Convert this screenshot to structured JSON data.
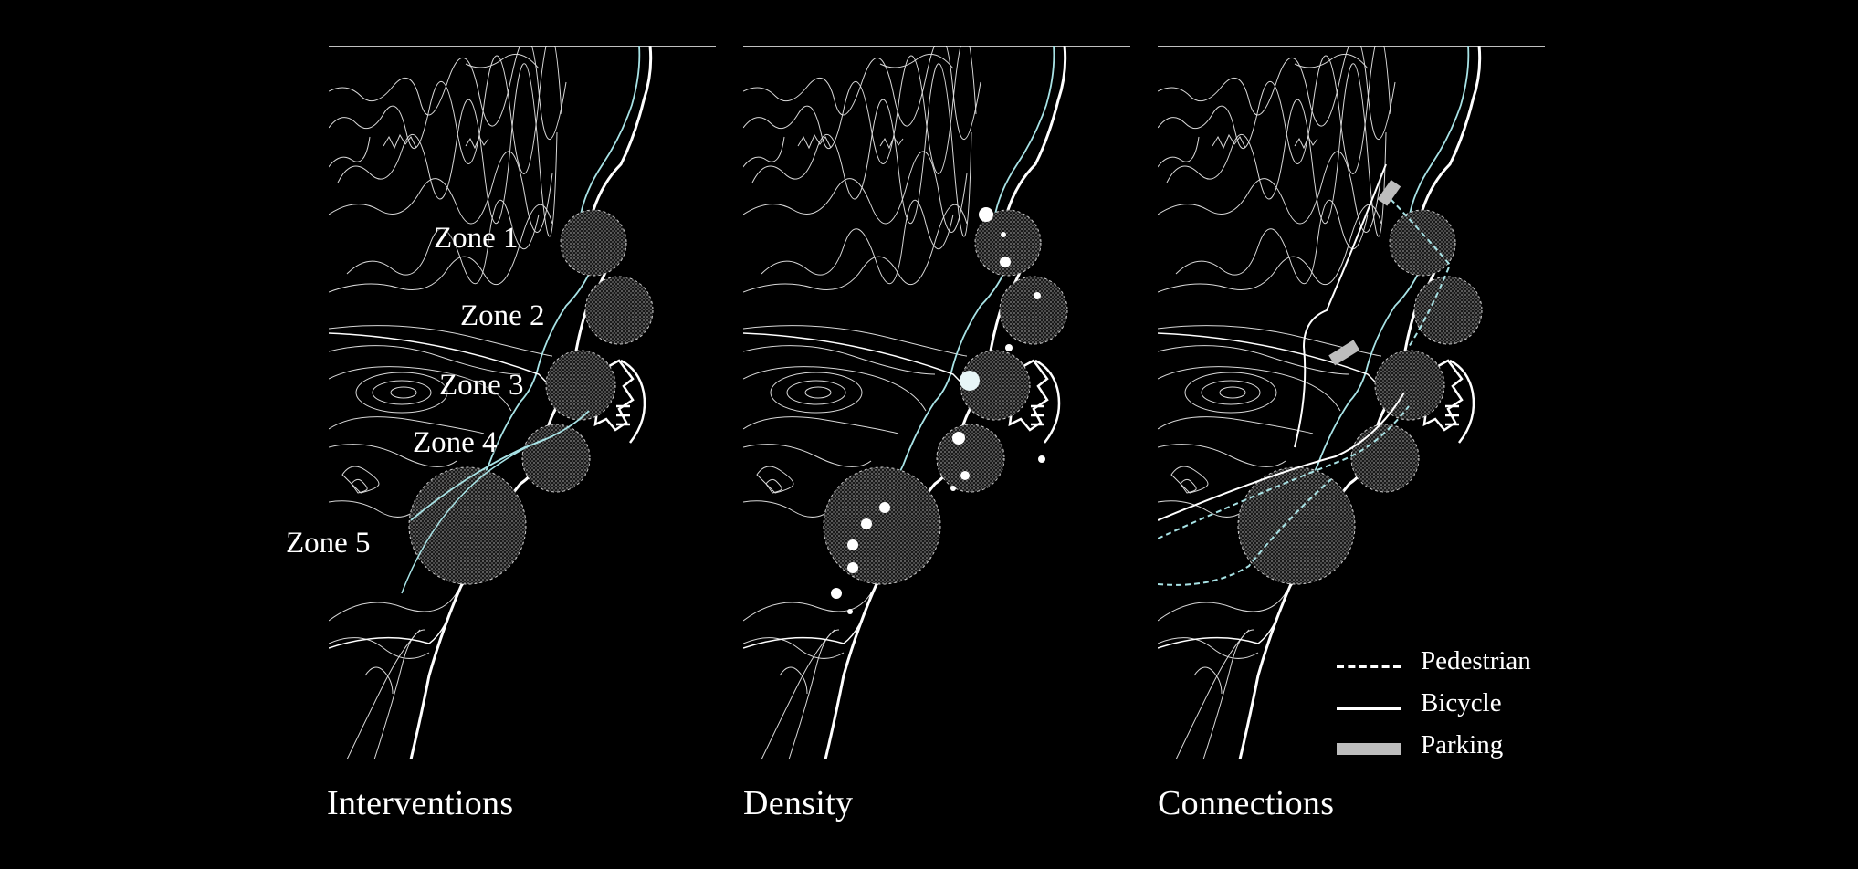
{
  "panels": [
    {
      "id": "interventions",
      "title": "Interventions"
    },
    {
      "id": "density",
      "title": "Density"
    },
    {
      "id": "connections",
      "title": "Connections"
    }
  ],
  "zones": [
    "Zone 1",
    "Zone 2",
    "Zone 3",
    "Zone 4",
    "Zone 5"
  ],
  "legend": {
    "pedestrian": "Pedestrian",
    "bicycle": "Bicycle",
    "parking": "Parking"
  },
  "colors": {
    "background": "#000000",
    "linework": "#ffffff",
    "water_path": "#a8e3e6",
    "parking": "#bdbdbd",
    "zone_fill": "#4a4a4a"
  }
}
